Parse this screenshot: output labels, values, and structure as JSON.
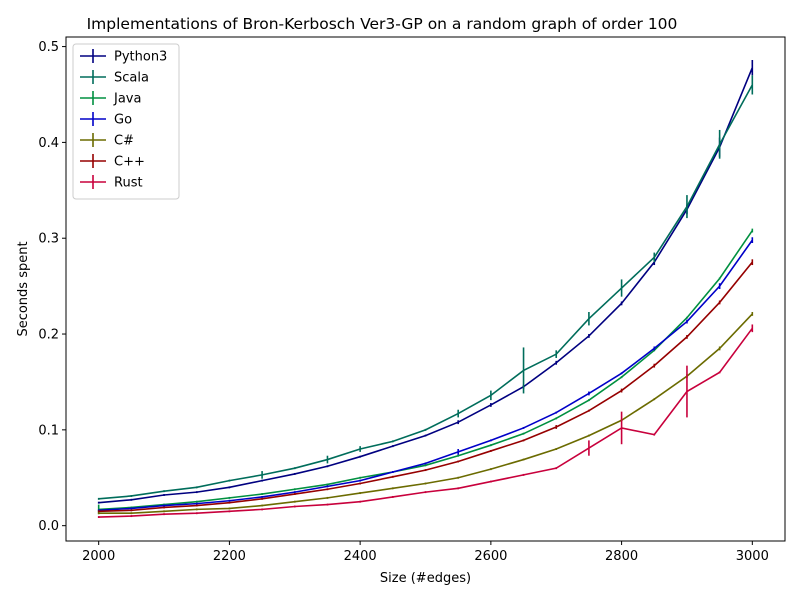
{
  "chart_data": {
    "type": "line",
    "title": "Implementations of Bron-Kerbosch Ver3-GP on a random graph of order 100",
    "xlabel": "Size (#edges)",
    "ylabel": "Seconds spent",
    "xlim": [
      1950,
      3050
    ],
    "ylim": [
      -0.016,
      0.51
    ],
    "xticks": [
      2000,
      2200,
      2400,
      2600,
      2800,
      3000
    ],
    "yticks": [
      0.0,
      0.1,
      0.2,
      0.3,
      0.4,
      0.5
    ],
    "ytick_labels": [
      "0.0",
      "0.1",
      "0.2",
      "0.3",
      "0.4",
      "0.5"
    ],
    "legend_position": "top-left",
    "grid": false,
    "x": [
      2000,
      2050,
      2100,
      2150,
      2200,
      2250,
      2300,
      2350,
      2400,
      2450,
      2500,
      2550,
      2600,
      2650,
      2700,
      2750,
      2800,
      2850,
      2900,
      2950,
      3000
    ],
    "series": [
      {
        "name": "Python3",
        "color": "#000080",
        "values": [
          0.024,
          0.027,
          0.032,
          0.035,
          0.04,
          0.047,
          0.054,
          0.062,
          0.072,
          0.083,
          0.094,
          0.108,
          0.126,
          0.145,
          0.17,
          0.198,
          0.232,
          0.275,
          0.33,
          0.395,
          0.478
        ],
        "errors": [
          0.001,
          0.001,
          0.001,
          0.001,
          0.001,
          0.001,
          0.001,
          0.001,
          0.001,
          0.001,
          0.001,
          0.002,
          0.002,
          0.002,
          0.002,
          0.002,
          0.002,
          0.003,
          0.005,
          0.01,
          0.008
        ]
      },
      {
        "name": "Scala",
        "color": "#006d5b",
        "values": [
          0.028,
          0.031,
          0.036,
          0.04,
          0.047,
          0.053,
          0.06,
          0.069,
          0.08,
          0.088,
          0.1,
          0.117,
          0.136,
          0.162,
          0.179,
          0.216,
          0.248,
          0.28,
          0.333,
          0.398,
          0.46
        ],
        "errors": [
          0.001,
          0.001,
          0.001,
          0.001,
          0.001,
          0.004,
          0.001,
          0.004,
          0.003,
          0.001,
          0.001,
          0.004,
          0.005,
          0.024,
          0.004,
          0.007,
          0.009,
          0.005,
          0.012,
          0.015,
          0.01
        ]
      },
      {
        "name": "Java",
        "color": "#009040",
        "values": [
          0.017,
          0.019,
          0.022,
          0.025,
          0.029,
          0.033,
          0.038,
          0.043,
          0.05,
          0.056,
          0.063,
          0.073,
          0.084,
          0.096,
          0.112,
          0.131,
          0.155,
          0.183,
          0.217,
          0.258,
          0.308
        ],
        "errors": [
          0.005,
          0.001,
          0.001,
          0.001,
          0.001,
          0.001,
          0.001,
          0.001,
          0.001,
          0.001,
          0.001,
          0.001,
          0.001,
          0.001,
          0.001,
          0.001,
          0.001,
          0.001,
          0.001,
          0.001,
          0.002
        ]
      },
      {
        "name": "Go",
        "color": "#0000c8",
        "values": [
          0.016,
          0.018,
          0.021,
          0.023,
          0.026,
          0.03,
          0.035,
          0.041,
          0.047,
          0.056,
          0.065,
          0.077,
          0.089,
          0.102,
          0.118,
          0.138,
          0.159,
          0.185,
          0.213,
          0.25,
          0.298
        ],
        "errors": [
          0.001,
          0.001,
          0.001,
          0.001,
          0.001,
          0.001,
          0.001,
          0.001,
          0.001,
          0.001,
          0.001,
          0.003,
          0.001,
          0.001,
          0.001,
          0.002,
          0.001,
          0.002,
          0.002,
          0.003,
          0.003
        ]
      },
      {
        "name": "C#",
        "color": "#6b6b00",
        "values": [
          0.013,
          0.013,
          0.015,
          0.017,
          0.018,
          0.021,
          0.025,
          0.029,
          0.034,
          0.039,
          0.044,
          0.05,
          0.059,
          0.069,
          0.08,
          0.094,
          0.11,
          0.132,
          0.156,
          0.185,
          0.221
        ],
        "errors": [
          0.001,
          0.001,
          0.001,
          0.001,
          0.001,
          0.001,
          0.001,
          0.001,
          0.001,
          0.001,
          0.001,
          0.001,
          0.001,
          0.001,
          0.001,
          0.001,
          0.001,
          0.001,
          0.002,
          0.002,
          0.002
        ]
      },
      {
        "name": "C++",
        "color": "#960000",
        "values": [
          0.015,
          0.016,
          0.019,
          0.021,
          0.024,
          0.028,
          0.033,
          0.038,
          0.044,
          0.051,
          0.058,
          0.067,
          0.078,
          0.089,
          0.103,
          0.12,
          0.141,
          0.167,
          0.197,
          0.233,
          0.275
        ],
        "errors": [
          0.001,
          0.001,
          0.001,
          0.001,
          0.001,
          0.001,
          0.001,
          0.001,
          0.001,
          0.001,
          0.001,
          0.001,
          0.001,
          0.001,
          0.002,
          0.001,
          0.002,
          0.002,
          0.002,
          0.002,
          0.003
        ]
      },
      {
        "name": "Rust",
        "color": "#c8003c",
        "values": [
          0.009,
          0.01,
          0.012,
          0.013,
          0.015,
          0.017,
          0.02,
          0.022,
          0.025,
          0.03,
          0.035,
          0.039,
          0.046,
          0.053,
          0.06,
          0.081,
          0.102,
          0.095,
          0.14,
          0.16,
          0.206
        ],
        "errors": [
          0.001,
          0.001,
          0.001,
          0.001,
          0.001,
          0.001,
          0.001,
          0.001,
          0.001,
          0.001,
          0.001,
          0.001,
          0.001,
          0.001,
          0.001,
          0.008,
          0.017,
          0.001,
          0.027,
          0.001,
          0.004
        ]
      }
    ]
  }
}
